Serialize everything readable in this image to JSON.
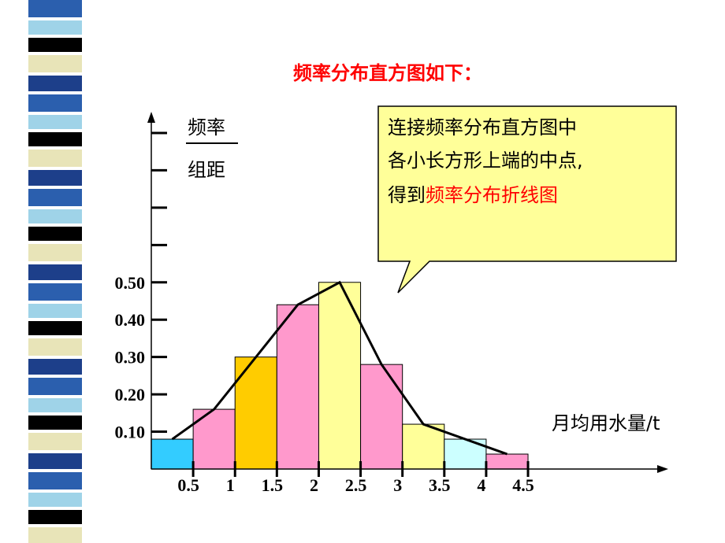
{
  "chart_data": {
    "type": "histogram",
    "title": "频率分布直方图如下：",
    "y_label_top": "频率",
    "y_label_bottom": "组距",
    "x_label": "月均用水量/t",
    "bins": [
      0,
      0.5,
      1,
      1.5,
      2,
      2.5,
      3,
      3.5,
      4,
      4.5
    ],
    "values": [
      0.08,
      0.16,
      0.3,
      0.44,
      0.5,
      0.28,
      0.12,
      0.08,
      0.04
    ],
    "colors": [
      "#33ccff",
      "#ff99cc",
      "#ffcc00",
      "#ff99cc",
      "#ffff99",
      "#ff99cc",
      "#ffff99",
      "#ccffff",
      "#ff99cc"
    ],
    "xlim": [
      0,
      6.1
    ],
    "ylim": [
      0,
      0.94
    ],
    "xticks": [
      0.5,
      1,
      1.5,
      2,
      2.5,
      3,
      3.5,
      4,
      4.5
    ],
    "yticks": [
      {
        "value": 0.1,
        "label": "0.10"
      },
      {
        "value": 0.2,
        "label": "0.20"
      },
      {
        "value": 0.3,
        "label": "0.30"
      },
      {
        "value": 0.4,
        "label": "0.40"
      },
      {
        "value": 0.5,
        "label": "0.50"
      }
    ],
    "yticks_unlabeled": [
      0.6,
      0.7,
      0.8,
      0.9
    ],
    "polygon": true,
    "callout": {
      "lines": [
        "连接频率分布直方图中",
        "各小长方形上端的中点,"
      ],
      "line3_prefix": "得到",
      "line3_highlight": "频率分布折线图"
    }
  }
}
